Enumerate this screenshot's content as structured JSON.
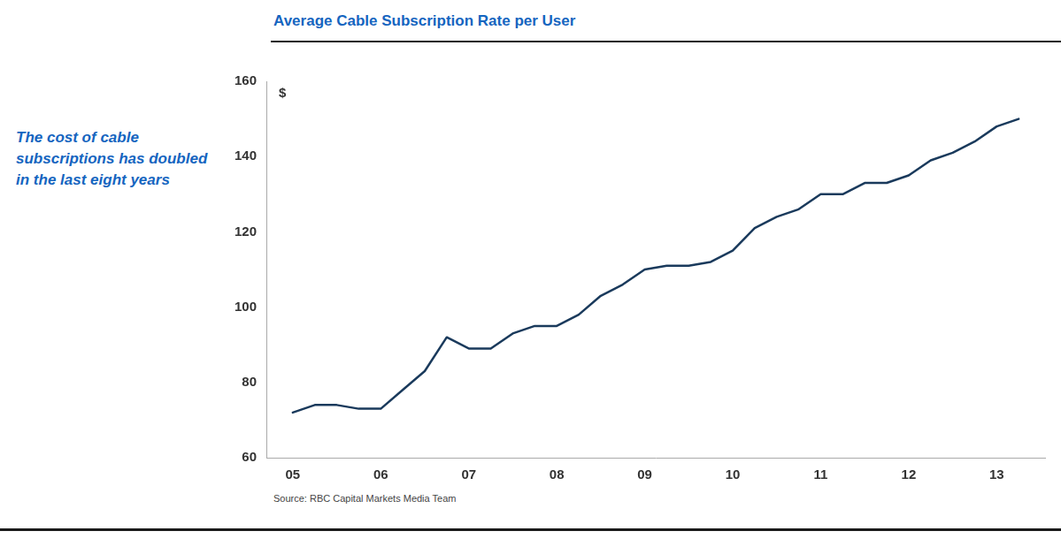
{
  "chart_data": {
    "type": "line",
    "title": "Average Cable Subscription Rate per User",
    "title_color": "#1565C0",
    "subtitle": "The cost of cable\nsubscriptions has doubled\nin the last eight years",
    "subtitle_color": "#1565C0",
    "source": "Source: RBC Capital Markets Media Team",
    "ylabel": "$",
    "color": "#1a3a5c",
    "x": [
      2005.0,
      2005.25,
      2005.5,
      2005.75,
      2006.0,
      2006.25,
      2006.5,
      2006.75,
      2007.0,
      2007.25,
      2007.5,
      2007.75,
      2008.0,
      2008.25,
      2008.5,
      2008.75,
      2009.0,
      2009.25,
      2009.5,
      2009.75,
      2010.0,
      2010.25,
      2010.5,
      2010.75,
      2011.0,
      2011.25,
      2011.5,
      2011.75,
      2012.0,
      2012.25,
      2012.5,
      2012.75,
      2013.0,
      2013.25
    ],
    "values": [
      72,
      74,
      74,
      73,
      73,
      78,
      83,
      92,
      89,
      89,
      93,
      95,
      95,
      98,
      103,
      106,
      110,
      111,
      111,
      112,
      115,
      121,
      124,
      126,
      130,
      130,
      133,
      133,
      135,
      139,
      141,
      144,
      148,
      150
    ],
    "xlim": [
      2004.7,
      2013.55
    ],
    "xticks": [
      {
        "value": 2005,
        "label": "05"
      },
      {
        "value": 2006,
        "label": "06"
      },
      {
        "value": 2007,
        "label": "07"
      },
      {
        "value": 2008,
        "label": "08"
      },
      {
        "value": 2009,
        "label": "09"
      },
      {
        "value": 2010,
        "label": "10"
      },
      {
        "value": 2011,
        "label": "11"
      },
      {
        "value": 2012,
        "label": "12"
      },
      {
        "value": 2013,
        "label": "13"
      }
    ],
    "ylim": [
      60,
      160
    ],
    "yticks": [
      60,
      80,
      100,
      120,
      140,
      160
    ],
    "grid": false
  }
}
